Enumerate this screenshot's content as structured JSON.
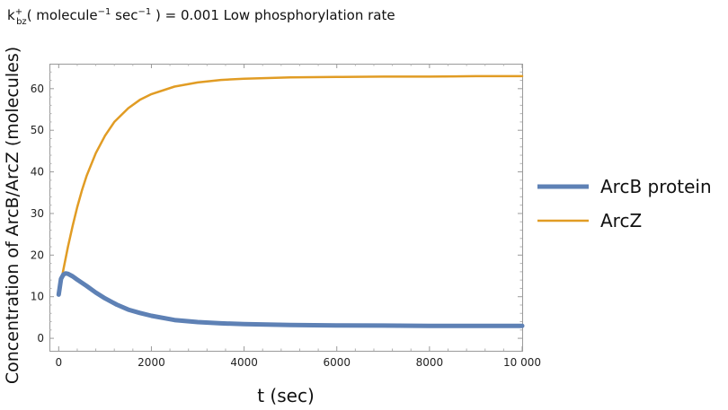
{
  "chart_data": {
    "type": "line",
    "title": {
      "symbol": "k",
      "superscript": "+",
      "subscript": "bz",
      "units": "( molecule",
      "exp1": "−1",
      "units2": " sec",
      "exp2": "−1",
      "units3": " ) = 0.001 Low phosphorylation rate"
    },
    "xlabel": "t (sec)",
    "ylabel": "Concentration of  ArcB/ArcZ (molecules)",
    "xlim": [
      -200,
      10000
    ],
    "ylim": [
      -3,
      66
    ],
    "xticks": [
      0,
      2000,
      4000,
      6000,
      8000,
      10000
    ],
    "xtick_labels": [
      "0",
      "2000",
      "4000",
      "6000",
      "8000",
      "10 000"
    ],
    "yticks": [
      0,
      10,
      20,
      30,
      40,
      50,
      60
    ],
    "ytick_labels": [
      "0",
      "10",
      "20",
      "30",
      "40",
      "50",
      "60"
    ],
    "grid": false,
    "legend_position": "right",
    "series": [
      {
        "name": "ArcB protein",
        "color": "#5E81B5",
        "x": [
          0,
          50,
          100,
          150,
          200,
          300,
          400,
          600,
          800,
          1000,
          1250,
          1500,
          1750,
          2000,
          2500,
          3000,
          3500,
          4000,
          5000,
          6000,
          7000,
          8000,
          9000,
          10000
        ],
        "y": [
          10.5,
          14.3,
          15.3,
          15.6,
          15.5,
          14.9,
          14.1,
          12.6,
          11.0,
          9.6,
          8.1,
          6.9,
          6.1,
          5.4,
          4.4,
          3.9,
          3.6,
          3.4,
          3.2,
          3.1,
          3.05,
          3.0,
          3.0,
          3.0
        ]
      },
      {
        "name": "ArcZ",
        "color": "#E19C24",
        "x": [
          0,
          100,
          200,
          300,
          400,
          500,
          600,
          800,
          1000,
          1200,
          1500,
          1750,
          2000,
          2500,
          3000,
          3500,
          4000,
          5000,
          6000,
          7000,
          8000,
          9000,
          10000
        ],
        "y": [
          10.5,
          16.5,
          22.0,
          27.0,
          31.5,
          35.5,
          39.0,
          44.5,
          48.7,
          52.0,
          55.3,
          57.3,
          58.7,
          60.5,
          61.5,
          62.1,
          62.4,
          62.7,
          62.8,
          62.9,
          62.9,
          63.0,
          63.0
        ]
      }
    ]
  }
}
